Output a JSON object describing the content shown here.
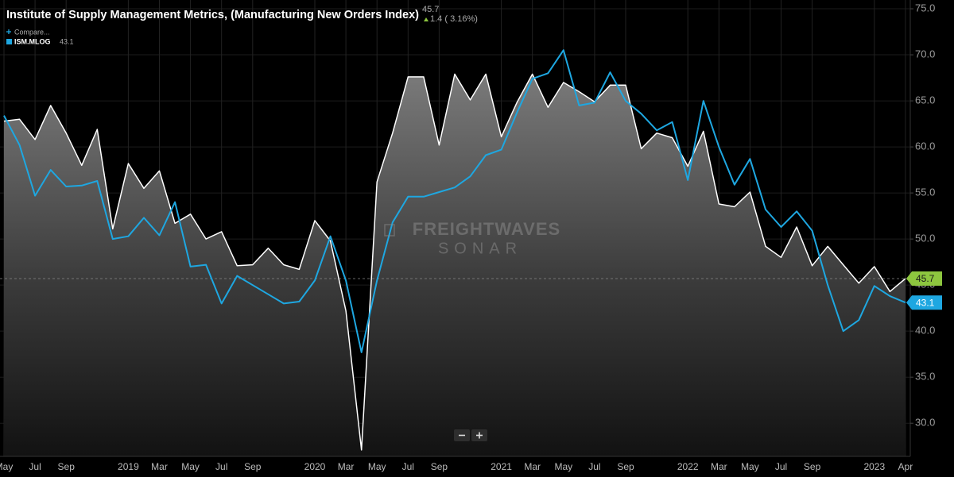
{
  "chart_data": {
    "type": "line",
    "title": "Institute of Supply Management Metrics, (Manufacturing New Orders Index)",
    "change_text": "1.4 ( 3.16%)",
    "compare_label": "Compare...",
    "watermark": {
      "brand": "FREIGHTWAVES",
      "product": "SONAR"
    },
    "categories": [
      "May",
      null,
      "Jul",
      null,
      "Sep",
      null,
      null,
      null,
      "2019",
      null,
      "Mar",
      null,
      "May",
      null,
      "Jul",
      null,
      "Sep",
      null,
      null,
      null,
      "2020",
      null,
      "Mar",
      null,
      "May",
      null,
      "Jul",
      null,
      "Sep",
      null,
      null,
      null,
      "2021",
      null,
      "Mar",
      null,
      "May",
      null,
      "Jul",
      null,
      "Sep",
      null,
      null,
      null,
      "2022",
      null,
      "Mar",
      null,
      "May",
      null,
      "Jul",
      null,
      "Sep",
      null,
      null,
      null,
      "2023",
      null,
      "Apr"
    ],
    "series": [
      {
        "color": "#ffffff",
        "values": [
          62.8,
          63.0,
          60.8,
          64.5,
          61.5,
          58.0,
          61.9,
          51.1,
          58.2,
          55.5,
          57.4,
          51.7,
          52.7,
          50.0,
          50.8,
          47.1,
          47.2,
          49.0,
          47.2,
          46.7,
          52.0,
          49.8,
          42.2,
          27.1,
          56.2,
          61.5,
          67.6,
          67.6,
          60.2,
          67.9,
          65.1,
          67.9,
          61.1,
          64.8,
          67.9,
          64.3,
          67.0,
          66.0,
          64.9,
          66.7,
          66.7,
          59.8,
          61.5,
          61.0,
          57.9,
          61.7,
          53.8,
          53.5,
          55.1,
          49.2,
          48.0,
          51.3,
          47.1,
          49.2,
          47.2,
          45.2,
          47.0,
          44.3,
          45.7
        ]
      },
      {
        "name": "ISM.MLOG",
        "color": "#1ea7e1",
        "values": [
          63.4,
          60.2,
          54.7,
          57.5,
          55.7,
          55.8,
          56.3,
          50.0,
          50.3,
          52.3,
          50.4,
          54.0,
          47.0,
          47.2,
          43.0,
          46.0,
          45.0,
          44.0,
          43.0,
          43.2,
          45.5,
          50.3,
          45.5,
          37.7,
          45.5,
          51.8,
          54.6,
          54.6,
          55.1,
          55.6,
          56.8,
          59.1,
          59.7,
          63.7,
          67.4,
          68.0,
          70.5,
          64.5,
          64.8,
          68.1,
          65.0,
          63.6,
          61.8,
          62.7,
          56.4,
          65.0,
          60.0,
          55.9,
          58.7,
          53.2,
          51.3,
          53.0,
          50.9,
          45.0,
          40.0,
          41.2,
          44.9,
          43.8,
          43.1
        ]
      }
    ],
    "ylim": [
      26.4,
      75.95
    ],
    "yticks": [
      {
        "value": 30,
        "label": "30.0"
      },
      {
        "value": 35,
        "label": "35.0"
      },
      {
        "value": 40,
        "label": "40.0"
      },
      {
        "value": 45,
        "label": "45.0"
      },
      {
        "value": 50,
        "label": "50.0"
      },
      {
        "value": 55,
        "label": "55.0"
      },
      {
        "value": 60,
        "label": "60.0"
      },
      {
        "value": 65,
        "label": "65.0"
      },
      {
        "value": 70,
        "label": "70.0"
      },
      {
        "value": 75,
        "label": "75.0"
      }
    ],
    "grid": true,
    "tag_color": "#8dc63f"
  }
}
